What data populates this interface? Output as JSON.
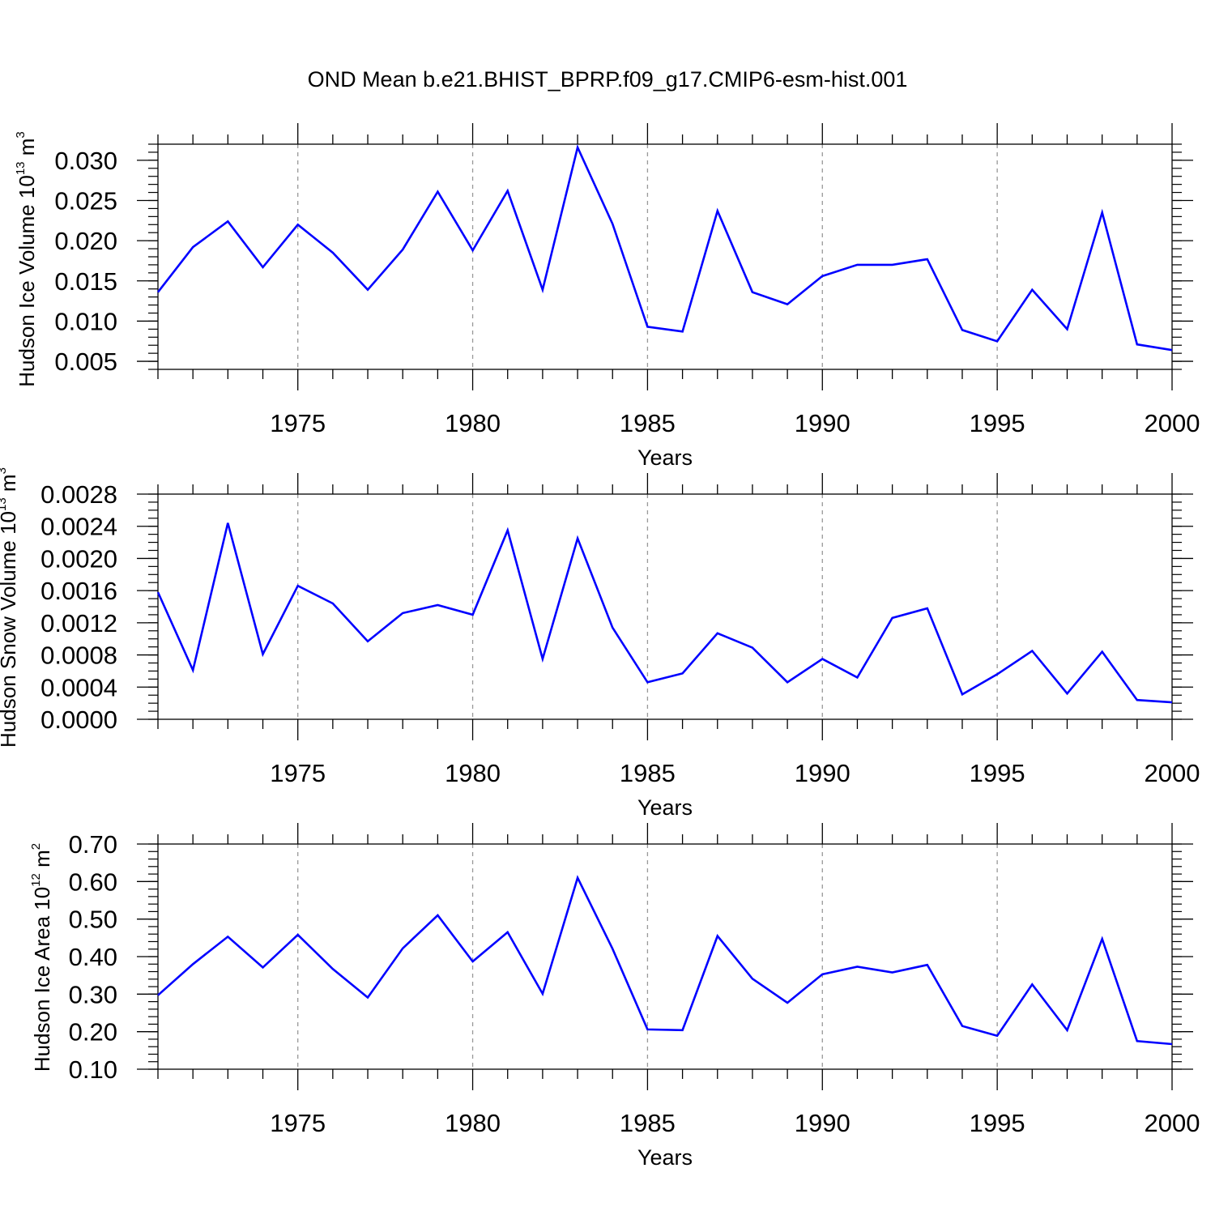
{
  "title": "OND Mean b.e21.BHIST_BPRP.f09_g17.CMIP6-esm-hist.001",
  "chart_data": [
    {
      "type": "line",
      "title": "OND Mean b.e21.BHIST_BPRP.f09_g17.CMIP6-esm-hist.001",
      "xlabel": "Years",
      "ylabel": {
        "text": "Hudson Ice Volume 10",
        "sup": "13",
        "unit": "m",
        "unit_sup": "3"
      },
      "xlim": [
        1971,
        2000
      ],
      "ylim": [
        0.004,
        0.032
      ],
      "x_ticks": [
        1975,
        1980,
        1985,
        1990,
        1995,
        2000
      ],
      "x_tick_labels": [
        "1975",
        "1980",
        "1985",
        "1990",
        "1995",
        "2000"
      ],
      "y_ticks": [
        0.005,
        0.01,
        0.015,
        0.02,
        0.025,
        0.03
      ],
      "y_tick_labels": [
        "0.005",
        "0.010",
        "0.015",
        "0.020",
        "0.025",
        "0.030"
      ],
      "y_minor_step": 0.001,
      "grid": "vertical-dashed",
      "series": [
        {
          "name": "Hudson Ice Volume",
          "color": "#0000ff",
          "x": [
            1971,
            1972,
            1973,
            1974,
            1975,
            1976,
            1977,
            1978,
            1979,
            1980,
            1981,
            1982,
            1983,
            1984,
            1985,
            1986,
            1987,
            1988,
            1989,
            1990,
            1991,
            1992,
            1993,
            1994,
            1995,
            1996,
            1997,
            1998,
            1999,
            2000
          ],
          "values": [
            0.0136,
            0.0192,
            0.0224,
            0.0167,
            0.022,
            0.0185,
            0.0139,
            0.0189,
            0.0261,
            0.0188,
            0.0262,
            0.0139,
            0.0316,
            0.0221,
            0.0093,
            0.0087,
            0.0237,
            0.0136,
            0.0121,
            0.0156,
            0.017,
            0.017,
            0.0177,
            0.0089,
            0.0075,
            0.0139,
            0.009,
            0.0235,
            0.0071,
            0.0064
          ]
        }
      ]
    },
    {
      "type": "line",
      "xlabel": "Years",
      "ylabel": {
        "text": "Hudson Snow Volume 10",
        "sup": "13",
        "unit": "m",
        "unit_sup": "3"
      },
      "xlim": [
        1971,
        2000
      ],
      "ylim": [
        0,
        0.0028
      ],
      "x_ticks": [
        1975,
        1980,
        1985,
        1990,
        1995,
        2000
      ],
      "x_tick_labels": [
        "1975",
        "1980",
        "1985",
        "1990",
        "1995",
        "2000"
      ],
      "y_ticks": [
        0,
        0.0004,
        0.0008,
        0.0012,
        0.0016,
        0.002,
        0.0024,
        0.0028
      ],
      "y_tick_labels": [
        "0.0000",
        "0.0004",
        "0.0008",
        "0.0012",
        "0.0016",
        "0.0020",
        "0.0024",
        "0.0028"
      ],
      "y_minor_step": 0.0001,
      "grid": "vertical-dashed",
      "series": [
        {
          "name": "Hudson Snow Volume",
          "color": "#0000ff",
          "x": [
            1971,
            1972,
            1973,
            1974,
            1975,
            1976,
            1977,
            1978,
            1979,
            1980,
            1981,
            1982,
            1983,
            1984,
            1985,
            1986,
            1987,
            1988,
            1989,
            1990,
            1991,
            1992,
            1993,
            1994,
            1995,
            1996,
            1997,
            1998,
            1999,
            2000
          ],
          "values": [
            0.00158,
            0.00061,
            0.00244,
            0.00081,
            0.00166,
            0.00144,
            0.00097,
            0.00132,
            0.00142,
            0.0013,
            0.00235,
            0.00075,
            0.00225,
            0.00114,
            0.00046,
            0.00057,
            0.00107,
            0.00089,
            0.00046,
            0.00075,
            0.00052,
            0.00126,
            0.00138,
            0.00031,
            0.00056,
            0.00085,
            0.00032,
            0.00084,
            0.00024,
            0.00021
          ]
        }
      ]
    },
    {
      "type": "line",
      "xlabel": "Years",
      "ylabel": {
        "text": "Hudson Ice Area 10",
        "sup": "12",
        "unit": "m",
        "unit_sup": "2"
      },
      "xlim": [
        1971,
        2000
      ],
      "ylim": [
        0.1,
        0.7
      ],
      "x_ticks": [
        1975,
        1980,
        1985,
        1990,
        1995,
        2000
      ],
      "x_tick_labels": [
        "1975",
        "1980",
        "1985",
        "1990",
        "1995",
        "2000"
      ],
      "y_ticks": [
        0.1,
        0.2,
        0.3,
        0.4,
        0.5,
        0.6,
        0.7
      ],
      "y_tick_labels": [
        "0.10",
        "0.20",
        "0.30",
        "0.40",
        "0.50",
        "0.60",
        "0.70"
      ],
      "y_minor_step": 0.02,
      "grid": "vertical-dashed",
      "series": [
        {
          "name": "Hudson Ice Area",
          "color": "#0000ff",
          "x": [
            1971,
            1972,
            1973,
            1974,
            1975,
            1976,
            1977,
            1978,
            1979,
            1980,
            1981,
            1982,
            1983,
            1984,
            1985,
            1986,
            1987,
            1988,
            1989,
            1990,
            1991,
            1992,
            1993,
            1994,
            1995,
            1996,
            1997,
            1998,
            1999,
            2000
          ],
          "values": [
            0.297,
            0.38,
            0.453,
            0.371,
            0.458,
            0.367,
            0.291,
            0.422,
            0.51,
            0.387,
            0.465,
            0.301,
            0.61,
            0.421,
            0.206,
            0.204,
            0.455,
            0.341,
            0.277,
            0.353,
            0.373,
            0.358,
            0.378,
            0.215,
            0.189,
            0.326,
            0.204,
            0.447,
            0.175,
            0.167
          ]
        }
      ]
    }
  ]
}
